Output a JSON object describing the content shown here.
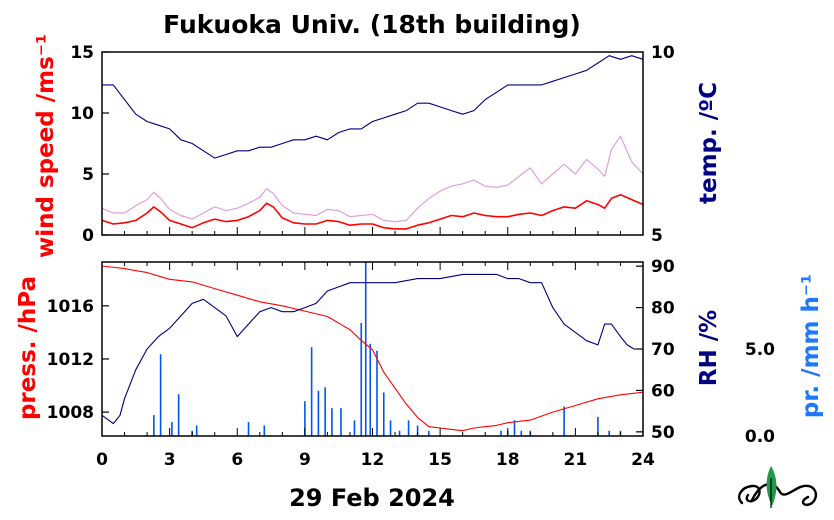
{
  "chart_data": [
    {
      "type": "line",
      "title": "Fukuoka Univ. (18th building)",
      "x_ticks": [
        "0",
        "3",
        "6",
        "9",
        "12",
        "15",
        "18",
        "21",
        "24"
      ],
      "xlim": [
        0,
        24
      ],
      "left_axis": {
        "label": "wind speed /ms⁻¹",
        "color": "#ff0000",
        "ylim": [
          0,
          15
        ],
        "ticks": [
          "0",
          "5",
          "10",
          "15"
        ]
      },
      "right_axis": {
        "label": "temp. /ºC",
        "color": "#000080",
        "ylim": [
          5,
          10
        ],
        "ticks": [
          "5",
          "10"
        ]
      },
      "series": [
        {
          "axis": "left",
          "kind": "wind-mean",
          "color": "#ff0000",
          "x": [
            0,
            0.5,
            1,
            1.5,
            2,
            2.3,
            2.6,
            3,
            3.5,
            4,
            4.5,
            5,
            5.5,
            6,
            6.5,
            7,
            7.3,
            7.6,
            8,
            8.5,
            9,
            9.5,
            10,
            10.5,
            11,
            11.5,
            12,
            12.5,
            13,
            13.5,
            14,
            14.5,
            15,
            15.5,
            16,
            16.5,
            17,
            17.5,
            18,
            18.5,
            19,
            19.5,
            20,
            20.5,
            21,
            21.5,
            22,
            22.3,
            22.6,
            23,
            23.5,
            24
          ],
          "y": [
            1.2,
            0.9,
            1.0,
            1.2,
            1.8,
            2.3,
            1.9,
            1.2,
            0.9,
            0.6,
            1.0,
            1.3,
            1.1,
            1.2,
            1.5,
            2.0,
            2.6,
            2.3,
            1.4,
            1.0,
            0.9,
            0.9,
            1.2,
            1.1,
            0.8,
            0.9,
            0.9,
            0.6,
            0.5,
            0.5,
            0.8,
            1.0,
            1.3,
            1.6,
            1.5,
            1.8,
            1.6,
            1.5,
            1.5,
            1.7,
            1.8,
            1.6,
            2.0,
            2.3,
            2.2,
            2.8,
            2.5,
            2.2,
            3.0,
            3.3,
            2.9,
            2.5
          ]
        },
        {
          "axis": "left",
          "kind": "wind-gust",
          "color": "#dda0dd",
          "x": [
            0,
            0.5,
            1,
            1.5,
            2,
            2.3,
            2.6,
            3,
            3.5,
            4,
            4.5,
            5,
            5.5,
            6,
            6.5,
            7,
            7.3,
            7.6,
            8,
            8.5,
            9,
            9.5,
            10,
            10.5,
            11,
            11.5,
            12,
            12.5,
            13,
            13.5,
            14,
            14.5,
            15,
            15.5,
            16,
            16.5,
            17,
            17.5,
            18,
            18.5,
            19,
            19.5,
            20,
            20.5,
            21,
            21.5,
            22,
            22.3,
            22.6,
            23,
            23.5,
            24
          ],
          "y": [
            2.2,
            1.8,
            1.8,
            2.4,
            2.9,
            3.5,
            3.0,
            2.1,
            1.6,
            1.3,
            1.8,
            2.3,
            2.0,
            2.2,
            2.6,
            3.1,
            3.8,
            3.4,
            2.4,
            1.8,
            1.7,
            1.6,
            2.1,
            2.0,
            1.5,
            1.6,
            1.7,
            1.2,
            1.1,
            1.2,
            2.2,
            3.0,
            3.6,
            4.0,
            4.2,
            4.5,
            4.0,
            3.9,
            4.1,
            4.8,
            5.5,
            4.2,
            5.0,
            5.8,
            5.0,
            6.2,
            5.4,
            4.8,
            7.0,
            8.1,
            6.0,
            5.0
          ]
        },
        {
          "axis": "right",
          "kind": "temperature",
          "color": "#000080",
          "x": [
            0,
            0.5,
            1,
            1.5,
            2,
            2.5,
            3,
            3.5,
            4,
            4.5,
            5,
            5.5,
            6,
            6.5,
            7,
            7.5,
            8,
            8.5,
            9,
            9.5,
            10,
            10.5,
            11,
            11.5,
            12,
            12.5,
            13,
            13.5,
            14,
            14.5,
            15,
            15.5,
            16,
            16.5,
            17,
            17.5,
            18,
            18.5,
            19,
            19.5,
            20,
            20.5,
            21,
            21.5,
            22,
            22.5,
            23,
            23.5,
            24
          ],
          "y": [
            9.1,
            9.1,
            8.7,
            8.3,
            8.1,
            8.0,
            7.9,
            7.6,
            7.5,
            7.3,
            7.1,
            7.2,
            7.3,
            7.3,
            7.4,
            7.4,
            7.5,
            7.6,
            7.6,
            7.7,
            7.6,
            7.8,
            7.9,
            7.9,
            8.1,
            8.2,
            8.3,
            8.4,
            8.6,
            8.6,
            8.5,
            8.4,
            8.3,
            8.4,
            8.7,
            8.9,
            9.1,
            9.1,
            9.1,
            9.1,
            9.2,
            9.3,
            9.4,
            9.5,
            9.7,
            9.9,
            9.8,
            9.9,
            9.8
          ]
        }
      ]
    },
    {
      "type": "line",
      "x_ticks": [
        "0",
        "3",
        "6",
        "9",
        "12",
        "15",
        "18",
        "21",
        "24"
      ],
      "xlim": [
        0,
        24
      ],
      "xlabel": "29 Feb 2024",
      "left_axis": {
        "label": "press. /hPa",
        "color": "#ff0000",
        "ylim": [
          1006.2,
          1019.3
        ],
        "ticks": [
          "1008",
          "1012",
          "1016"
        ]
      },
      "right_axis": {
        "label": "RH /%",
        "color": "#000080",
        "ylim": [
          49,
          91
        ],
        "ticks": [
          "50",
          "60",
          "70",
          "80",
          "90"
        ]
      },
      "precip_axis": {
        "label": "pr. /mm h⁻¹",
        "color": "#0000ff",
        "ylim": [
          0,
          10
        ],
        "ticks": [
          "0.0",
          "5.0"
        ]
      },
      "series": [
        {
          "axis": "left",
          "kind": "pressure",
          "color": "#ff0000",
          "x": [
            0,
            1,
            2,
            3,
            4,
            5,
            6,
            7,
            8,
            9,
            10,
            11,
            11.5,
            12,
            12.5,
            13,
            13.5,
            14,
            14.5,
            15,
            15.5,
            16,
            16.5,
            17,
            17.5,
            18,
            19,
            20,
            21,
            22,
            23,
            24
          ],
          "y": [
            1019.0,
            1018.8,
            1018.5,
            1018.0,
            1017.8,
            1017.3,
            1016.8,
            1016.3,
            1016.0,
            1015.6,
            1015.2,
            1014.2,
            1013.4,
            1012.7,
            1011.0,
            1009.8,
            1008.6,
            1007.6,
            1006.9,
            1006.8,
            1006.7,
            1006.6,
            1006.8,
            1006.9,
            1007.0,
            1007.2,
            1007.4,
            1008.0,
            1008.5,
            1009.0,
            1009.3,
            1009.5
          ]
        },
        {
          "axis": "right",
          "kind": "humidity",
          "color": "#000080",
          "x": [
            0,
            0.5,
            0.8,
            1,
            1.5,
            2,
            2.5,
            3,
            3.5,
            4,
            4.5,
            5,
            5.5,
            6,
            6.5,
            7,
            7.5,
            8,
            8.5,
            9,
            9.5,
            10,
            10.5,
            11,
            12,
            13,
            14,
            15,
            16,
            17,
            17.5,
            18,
            18.5,
            19,
            19.5,
            20,
            20.5,
            21,
            21.5,
            22,
            22.3,
            22.6,
            23,
            23.3,
            23.6,
            24
          ],
          "y": [
            54,
            52,
            54,
            58,
            65,
            70,
            73,
            75,
            78,
            81,
            82,
            80,
            78,
            73,
            76,
            79,
            80,
            79,
            79,
            80,
            81,
            84,
            85,
            86,
            86,
            86,
            87,
            87,
            88,
            88,
            88,
            87,
            87,
            86,
            86,
            80,
            76,
            74,
            72,
            71,
            76,
            76,
            73,
            71,
            70,
            70
          ]
        },
        {
          "axis": "precip",
          "kind": "precipitation",
          "color": "#0055ee",
          "x": [
            2.3,
            2.6,
            3.1,
            3.4,
            4.0,
            4.2,
            6.5,
            7.2,
            9.0,
            9.3,
            9.6,
            9.9,
            10.2,
            10.6,
            11.2,
            11.5,
            11.7,
            11.9,
            12.2,
            12.5,
            12.8,
            13.2,
            13.6,
            14.0,
            14.5,
            17.7,
            18.0,
            18.3,
            18.6,
            19.0,
            20.5,
            22.0,
            22.5,
            23.0
          ],
          "y": [
            1.2,
            4.7,
            0.8,
            2.4,
            0.3,
            0.6,
            0.8,
            0.6,
            2.0,
            5.1,
            2.6,
            2.8,
            1.6,
            1.6,
            0.9,
            6.5,
            10.0,
            5.3,
            4.9,
            2.5,
            0.9,
            0.3,
            0.9,
            0.6,
            0.3,
            0.3,
            0.3,
            0.9,
            0.3,
            0.3,
            1.7,
            1.1,
            0.3,
            0.3
          ]
        }
      ]
    }
  ]
}
